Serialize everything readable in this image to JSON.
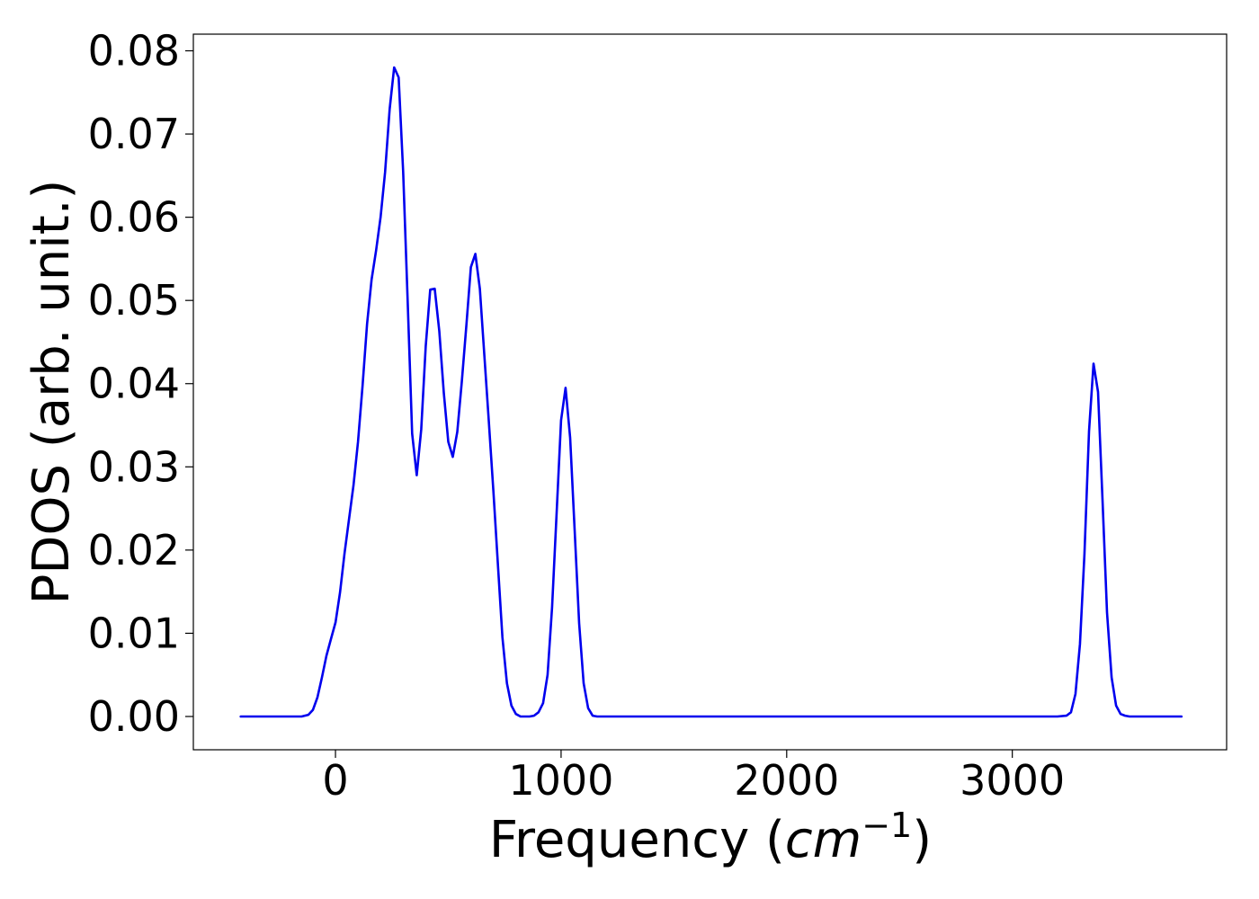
{
  "chart_data": {
    "type": "line",
    "title": "",
    "xlabel": "Frequency (",
    "xlabel_math": "cm",
    "xlabel_superscript": "−1",
    "xlabel_suffix": ")",
    "ylabel": "PDOS (arb. unit.)",
    "xlim": [
      -630,
      3950
    ],
    "ylim": [
      -0.004,
      0.082
    ],
    "x_ticks": [
      0,
      1000,
      2000,
      3000
    ],
    "x_tick_labels": [
      "0",
      "1000",
      "2000",
      "3000"
    ],
    "y_ticks": [
      0.0,
      0.01,
      0.02,
      0.03,
      0.04,
      0.05,
      0.06,
      0.07,
      0.08
    ],
    "y_tick_labels": [
      "0.00",
      "0.01",
      "0.02",
      "0.03",
      "0.04",
      "0.05",
      "0.06",
      "0.07",
      "0.08"
    ],
    "grid": false,
    "legend": "none",
    "series": [
      {
        "color": "#0000ee",
        "x": [
          -420,
          -200,
          -150,
          -120,
          -100,
          -80,
          -60,
          -40,
          -20,
          0,
          20,
          40,
          60,
          80,
          100,
          120,
          140,
          160,
          180,
          200,
          220,
          240,
          260,
          280,
          300,
          320,
          340,
          360,
          380,
          400,
          420,
          440,
          460,
          480,
          500,
          520,
          540,
          560,
          580,
          600,
          620,
          640,
          660,
          680,
          700,
          720,
          740,
          760,
          780,
          800,
          820,
          840,
          860,
          880,
          900,
          920,
          940,
          960,
          980,
          1000,
          1020,
          1040,
          1060,
          1080,
          1100,
          1120,
          1140,
          1160,
          1180,
          1200,
          1400,
          1800,
          2200,
          2600,
          3000,
          3200,
          3240,
          3260,
          3280,
          3300,
          3320,
          3340,
          3360,
          3380,
          3400,
          3420,
          3440,
          3460,
          3480,
          3500,
          3520,
          3550,
          3750
        ],
        "y": [
          0.0,
          0.0,
          0.0,
          0.0002,
          0.0008,
          0.0023,
          0.0047,
          0.0073,
          0.0093,
          0.0113,
          0.0149,
          0.0196,
          0.0237,
          0.0278,
          0.033,
          0.0398,
          0.0472,
          0.0525,
          0.056,
          0.06,
          0.0654,
          0.073,
          0.078,
          0.0768,
          0.0655,
          0.05,
          0.034,
          0.029,
          0.0345,
          0.0445,
          0.0513,
          0.0514,
          0.0463,
          0.0389,
          0.033,
          0.0312,
          0.0342,
          0.0402,
          0.047,
          0.054,
          0.0556,
          0.0514,
          0.0434,
          0.0354,
          0.027,
          0.0182,
          0.0095,
          0.004,
          0.0013,
          0.0003,
          0.0,
          0.0,
          0.0,
          0.0001,
          0.0005,
          0.0016,
          0.005,
          0.0131,
          0.0243,
          0.0356,
          0.0395,
          0.0335,
          0.0224,
          0.0112,
          0.004,
          0.001,
          0.0001,
          0.0,
          0.0,
          0.0,
          0.0,
          0.0,
          0.0,
          0.0,
          0.0,
          0.0,
          0.0001,
          0.0005,
          0.0027,
          0.0087,
          0.0195,
          0.0343,
          0.0424,
          0.039,
          0.026,
          0.0125,
          0.0047,
          0.0013,
          0.0003,
          0.0001,
          0.0,
          0.0,
          0.0
        ]
      }
    ]
  }
}
